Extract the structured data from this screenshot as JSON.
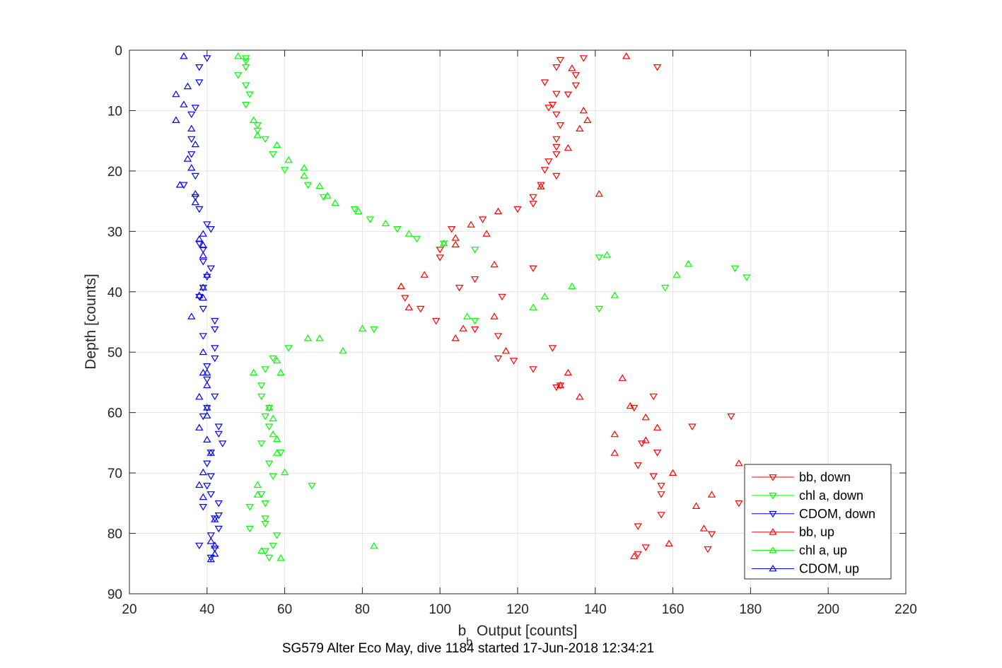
{
  "chart_data": {
    "type": "scatter",
    "xlabel": "b",
    "xlabel_sub": "b",
    "xlabel_rest": " Output [counts]",
    "ylabel": "Depth [counts]",
    "caption": "SG579 Alter Eco May, dive 1184 started 17-Jun-2018 12:34:21",
    "xlim": [
      20,
      220
    ],
    "ylim": [
      0,
      90
    ],
    "y_reversed": true,
    "grid": true,
    "legend_position": "bottom-right",
    "xticks": [
      20,
      40,
      60,
      80,
      100,
      120,
      140,
      160,
      180,
      200,
      220
    ],
    "yticks": [
      0,
      10,
      20,
      30,
      40,
      50,
      60,
      70,
      80,
      90
    ],
    "series": [
      {
        "name": "bb, down",
        "color": "#ff0000",
        "marker": "triangle-down",
        "points": [
          [
            137,
            1.3
          ],
          [
            131,
            1.6
          ],
          [
            156,
            2.8
          ],
          [
            130,
            2.8
          ],
          [
            135,
            4.1
          ],
          [
            135,
            5.8
          ],
          [
            127,
            5.3
          ],
          [
            130,
            7.2
          ],
          [
            133,
            7.3
          ],
          [
            129,
            9.0
          ],
          [
            128,
            9.5
          ],
          [
            130,
            10.6
          ],
          [
            131,
            12.4
          ],
          [
            130,
            14.7
          ],
          [
            130,
            16.0
          ],
          [
            130,
            17.2
          ],
          [
            128,
            18.4
          ],
          [
            127,
            19.8
          ],
          [
            130,
            20.8
          ],
          [
            126,
            22.3
          ],
          [
            124,
            24.3
          ],
          [
            124,
            25.4
          ],
          [
            120,
            26.3
          ],
          [
            111,
            28.0
          ],
          [
            103,
            29.6
          ],
          [
            100,
            33.0
          ],
          [
            100,
            34.3
          ],
          [
            124,
            36.1
          ],
          [
            109,
            37.9
          ],
          [
            105,
            39.3
          ],
          [
            116,
            40.8
          ],
          [
            91,
            41.0
          ],
          [
            95,
            42.8
          ],
          [
            99,
            44.8
          ],
          [
            109,
            46.2
          ],
          [
            115,
            47.3
          ],
          [
            129,
            49.3
          ],
          [
            119,
            51.4
          ],
          [
            115,
            51.0
          ],
          [
            124,
            52.8
          ],
          [
            131,
            55.5
          ],
          [
            130,
            55.8
          ],
          [
            155,
            57.3
          ],
          [
            150,
            59.2
          ],
          [
            175,
            60.6
          ],
          [
            165,
            62.3
          ],
          [
            152,
            65.1
          ],
          [
            156,
            66.6
          ],
          [
            151,
            68.7
          ],
          [
            155,
            70.5
          ],
          [
            157,
            72.1
          ],
          [
            157,
            73.5
          ],
          [
            177,
            75.0
          ],
          [
            157,
            76.9
          ],
          [
            151,
            78.8
          ],
          [
            170,
            80.1
          ],
          [
            153,
            82.3
          ],
          [
            151,
            83.4
          ],
          [
            169,
            82.6
          ]
        ]
      },
      {
        "name": "chl a, down",
        "color": "#00ff00",
        "marker": "triangle-down",
        "points": [
          [
            50,
            1.3
          ],
          [
            50,
            1.8
          ],
          [
            50,
            2.8
          ],
          [
            48,
            4.1
          ],
          [
            50,
            5.8
          ],
          [
            51,
            7.3
          ],
          [
            50,
            9.0
          ],
          [
            53,
            12.4
          ],
          [
            53,
            13.3
          ],
          [
            55,
            14.7
          ],
          [
            57,
            17.2
          ],
          [
            60,
            19.8
          ],
          [
            66,
            22.3
          ],
          [
            70,
            24.3
          ],
          [
            78,
            26.3
          ],
          [
            82,
            28.0
          ],
          [
            89,
            29.6
          ],
          [
            94,
            31.2
          ],
          [
            101,
            32.0
          ],
          [
            109,
            33.0
          ],
          [
            141,
            34.3
          ],
          [
            176,
            36.1
          ],
          [
            179,
            37.6
          ],
          [
            158,
            39.3
          ],
          [
            141,
            42.8
          ],
          [
            109,
            44.8
          ],
          [
            83,
            46.2
          ],
          [
            61,
            49.3
          ],
          [
            57,
            51.0
          ],
          [
            55,
            52.8
          ],
          [
            54,
            55.5
          ],
          [
            54,
            57.3
          ],
          [
            56,
            59.2
          ],
          [
            55,
            60.6
          ],
          [
            56,
            62.3
          ],
          [
            54,
            65.1
          ],
          [
            59,
            66.6
          ],
          [
            56,
            68.4
          ],
          [
            57,
            70.5
          ],
          [
            67,
            72.1
          ],
          [
            54,
            73.5
          ],
          [
            55,
            75.0
          ],
          [
            51,
            75.6
          ],
          [
            55,
            77.5
          ],
          [
            55,
            78.4
          ],
          [
            51,
            79.2
          ],
          [
            58,
            80.3
          ],
          [
            57,
            82.0
          ],
          [
            55,
            82.9
          ],
          [
            56,
            84.0
          ]
        ]
      },
      {
        "name": "CDOM, down",
        "color": "#0000ff",
        "marker": "triangle-down",
        "points": [
          [
            40,
            1.3
          ],
          [
            38,
            2.8
          ],
          [
            38,
            5.3
          ],
          [
            37,
            9.5
          ],
          [
            36,
            10.6
          ],
          [
            36,
            14.7
          ],
          [
            36,
            17.2
          ],
          [
            37,
            20.8
          ],
          [
            34,
            22.3
          ],
          [
            37,
            24.3
          ],
          [
            38,
            26.3
          ],
          [
            40,
            28.8
          ],
          [
            41,
            29.6
          ],
          [
            38,
            32.0
          ],
          [
            39,
            33.0
          ],
          [
            39,
            35.0
          ],
          [
            41,
            36.1
          ],
          [
            40,
            37.5
          ],
          [
            39,
            39.3
          ],
          [
            38,
            40.8
          ],
          [
            39,
            42.8
          ],
          [
            42,
            44.8
          ],
          [
            42,
            46.2
          ],
          [
            39,
            47.3
          ],
          [
            42,
            49.3
          ],
          [
            42,
            51.0
          ],
          [
            40,
            52.3
          ],
          [
            40,
            54.5
          ],
          [
            42,
            57.3
          ],
          [
            40,
            59.2
          ],
          [
            39,
            60.6
          ],
          [
            43,
            62.3
          ],
          [
            43,
            63.5
          ],
          [
            44,
            65.1
          ],
          [
            41,
            66.6
          ],
          [
            40,
            68.4
          ],
          [
            41,
            70.5
          ],
          [
            40,
            72.1
          ],
          [
            41,
            73.5
          ],
          [
            43,
            75.0
          ],
          [
            39,
            75.6
          ],
          [
            43,
            77.0
          ],
          [
            42,
            77.5
          ],
          [
            43,
            79.2
          ],
          [
            41,
            80.3
          ],
          [
            38,
            82.0
          ],
          [
            42,
            82.5
          ],
          [
            41,
            84.0
          ]
        ]
      },
      {
        "name": "bb, up",
        "color": "#ff0000",
        "marker": "triangle-up",
        "points": [
          [
            148,
            1.0
          ],
          [
            134,
            3.0
          ],
          [
            136,
            13.0
          ],
          [
            138,
            11.6
          ],
          [
            137,
            10.0
          ],
          [
            133,
            16.2
          ],
          [
            126,
            22.6
          ],
          [
            141,
            23.8
          ],
          [
            115,
            26.7
          ],
          [
            108,
            28.9
          ],
          [
            112,
            30.4
          ],
          [
            104,
            32.2
          ],
          [
            104,
            31.1
          ],
          [
            96,
            37.2
          ],
          [
            114,
            35.5
          ],
          [
            90,
            39.1
          ],
          [
            92,
            42.6
          ],
          [
            114,
            44.1
          ],
          [
            106,
            46.1
          ],
          [
            104,
            47.7
          ],
          [
            117,
            49.8
          ],
          [
            133,
            53.4
          ],
          [
            131,
            55.5
          ],
          [
            136,
            57.4
          ],
          [
            147,
            54.3
          ],
          [
            149,
            58.9
          ],
          [
            153,
            60.8
          ],
          [
            156,
            62.5
          ],
          [
            145,
            63.6
          ],
          [
            153,
            64.6
          ],
          [
            145,
            66.7
          ],
          [
            160,
            70.0
          ],
          [
            177,
            68.4
          ],
          [
            170,
            73.6
          ],
          [
            166,
            75.5
          ],
          [
            168,
            79.2
          ],
          [
            159,
            81.7
          ],
          [
            150,
            83.8
          ]
        ]
      },
      {
        "name": "chl a, up",
        "color": "#00ff00",
        "marker": "triangle-up",
        "points": [
          [
            48,
            1.0
          ],
          [
            52,
            11.6
          ],
          [
            53,
            14.1
          ],
          [
            58,
            15.7
          ],
          [
            61,
            18.2
          ],
          [
            65,
            19.5
          ],
          [
            65,
            20.8
          ],
          [
            69,
            22.5
          ],
          [
            71,
            24.1
          ],
          [
            73,
            25.3
          ],
          [
            79,
            26.7
          ],
          [
            86,
            28.7
          ],
          [
            92,
            30.4
          ],
          [
            101,
            32.0
          ],
          [
            143,
            33.9
          ],
          [
            164,
            35.4
          ],
          [
            161,
            37.2
          ],
          [
            134,
            39.1
          ],
          [
            145,
            40.6
          ],
          [
            124,
            42.6
          ],
          [
            127,
            40.8
          ],
          [
            107,
            44.1
          ],
          [
            80,
            46.1
          ],
          [
            69,
            47.7
          ],
          [
            66,
            47.7
          ],
          [
            75,
            49.8
          ],
          [
            58,
            51.4
          ],
          [
            52,
            53.4
          ],
          [
            59,
            53.4
          ],
          [
            56,
            59.2
          ],
          [
            57,
            61.0
          ],
          [
            57,
            63.6
          ],
          [
            58,
            64.4
          ],
          [
            58,
            66.7
          ],
          [
            60,
            69.9
          ],
          [
            53,
            72.0
          ],
          [
            53,
            73.6
          ],
          [
            83,
            82.1
          ],
          [
            54,
            82.9
          ],
          [
            59,
            84.1
          ]
        ]
      },
      {
        "name": "CDOM, up",
        "color": "#0000ff",
        "marker": "triangle-up",
        "points": [
          [
            34,
            1.0
          ],
          [
            35,
            6.0
          ],
          [
            32,
            7.3
          ],
          [
            34,
            9.0
          ],
          [
            32,
            11.6
          ],
          [
            36,
            13.0
          ],
          [
            37,
            15.6
          ],
          [
            35,
            18.0
          ],
          [
            33,
            22.3
          ],
          [
            36,
            19.5
          ],
          [
            37,
            23.8
          ],
          [
            37,
            25.2
          ],
          [
            39,
            30.4
          ],
          [
            38,
            31.3
          ],
          [
            39,
            32.3
          ],
          [
            39,
            34.0
          ],
          [
            40,
            37.2
          ],
          [
            39,
            39.3
          ],
          [
            39,
            41.0
          ],
          [
            36,
            44.1
          ],
          [
            38,
            40.6
          ],
          [
            39,
            50.0
          ],
          [
            40,
            53.4
          ],
          [
            39,
            53.4
          ],
          [
            40,
            55.5
          ],
          [
            38,
            57.4
          ],
          [
            40,
            59.2
          ],
          [
            40,
            60.5
          ],
          [
            38,
            62.5
          ],
          [
            40,
            64.5
          ],
          [
            41,
            66.7
          ],
          [
            39,
            69.9
          ],
          [
            38,
            72.0
          ],
          [
            39,
            74.0
          ],
          [
            42,
            77.7
          ],
          [
            42,
            82.0
          ],
          [
            41,
            81.3
          ],
          [
            42,
            83.4
          ],
          [
            41,
            84.3
          ]
        ]
      }
    ]
  }
}
